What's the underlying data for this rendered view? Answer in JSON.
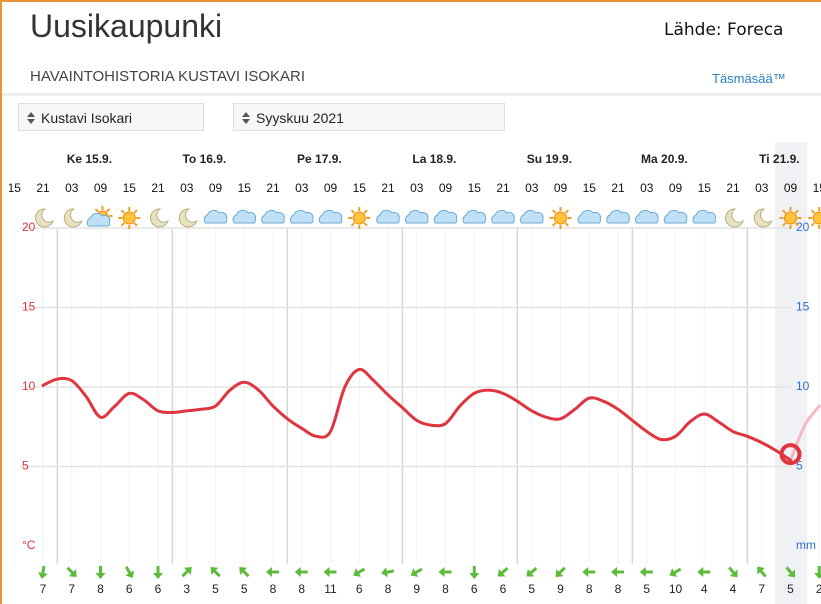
{
  "header": {
    "title": "Uusikaupunki",
    "source": "Lähde: Foreca",
    "subtitle": "HAVAINTOHISTORIA KUSTAVI ISOKARI",
    "brand": "Täsmäsää™"
  },
  "selects": {
    "station": "Kustavi Isokari",
    "month": "Syyskuu 2021"
  },
  "chart_data": {
    "type": "line",
    "days": [
      "Ke 15.9.",
      "To 16.9.",
      "Pe 17.9.",
      "La 18.9.",
      "Su 19.9.",
      "Ma 20.9.",
      "Ti 21.9."
    ],
    "categories": [
      "15",
      null,
      "21",
      null,
      "03",
      null,
      "09",
      null,
      "15",
      null,
      "21",
      null,
      "03",
      null,
      "09",
      null,
      "15",
      null,
      "21",
      null,
      "03",
      null,
      "09",
      null,
      "15",
      null,
      "21",
      null,
      "03",
      null,
      "09",
      null,
      "15",
      null,
      "21",
      null,
      "03",
      null,
      "09",
      null,
      "15",
      null,
      "21",
      null,
      "03",
      null,
      "09",
      null,
      "15",
      null,
      "21",
      null,
      "03",
      null,
      "09",
      null,
      "15"
    ],
    "series": [
      {
        "color": "#e0343f",
        "values": [
          null,
          null,
          10.1,
          10.5,
          10.4,
          9.4,
          8.1,
          8.8,
          9.6,
          9.2,
          8.5,
          8.4,
          8.5,
          8.6,
          8.8,
          9.8,
          10.3,
          9.8,
          8.8,
          8.0,
          7.4,
          6.9,
          7.2,
          10.0,
          11.1,
          10.4,
          9.5,
          8.7,
          7.9,
          7.6,
          7.7,
          8.8,
          9.6,
          9.8,
          9.6,
          9.1,
          8.5,
          8.1,
          8.0,
          8.6,
          9.3,
          9.1,
          8.6,
          7.9,
          7.2,
          6.7,
          6.9,
          7.8,
          8.3,
          7.8,
          7.2,
          6.9,
          6.5,
          6.0,
          5.4,
          null,
          null
        ]
      },
      {
        "color": "#f7b8c0",
        "values": [
          null,
          null,
          null,
          null,
          null,
          null,
          null,
          null,
          null,
          null,
          null,
          null,
          null,
          null,
          null,
          null,
          null,
          null,
          null,
          null,
          null,
          null,
          null,
          null,
          null,
          null,
          null,
          null,
          null,
          null,
          null,
          null,
          null,
          null,
          null,
          null,
          null,
          null,
          null,
          null,
          null,
          null,
          null,
          null,
          null,
          null,
          null,
          null,
          null,
          null,
          null,
          null,
          null,
          null,
          5.4,
          7.6,
          8.8
        ]
      }
    ],
    "ylim": [
      0,
      20
    ],
    "yticks": [
      5,
      10,
      15,
      20
    ],
    "y_unit": "°C",
    "y2lim": [
      0,
      20
    ],
    "y2ticks": [
      5,
      10,
      15,
      20
    ],
    "y2_unit": "mm",
    "wind": [
      7,
      7,
      8,
      6,
      6,
      3,
      5,
      5,
      8,
      8,
      11,
      6,
      8,
      9,
      8,
      6,
      6,
      5,
      9,
      8,
      8,
      5,
      10,
      4,
      4,
      7,
      5,
      2
    ],
    "grid": true
  }
}
